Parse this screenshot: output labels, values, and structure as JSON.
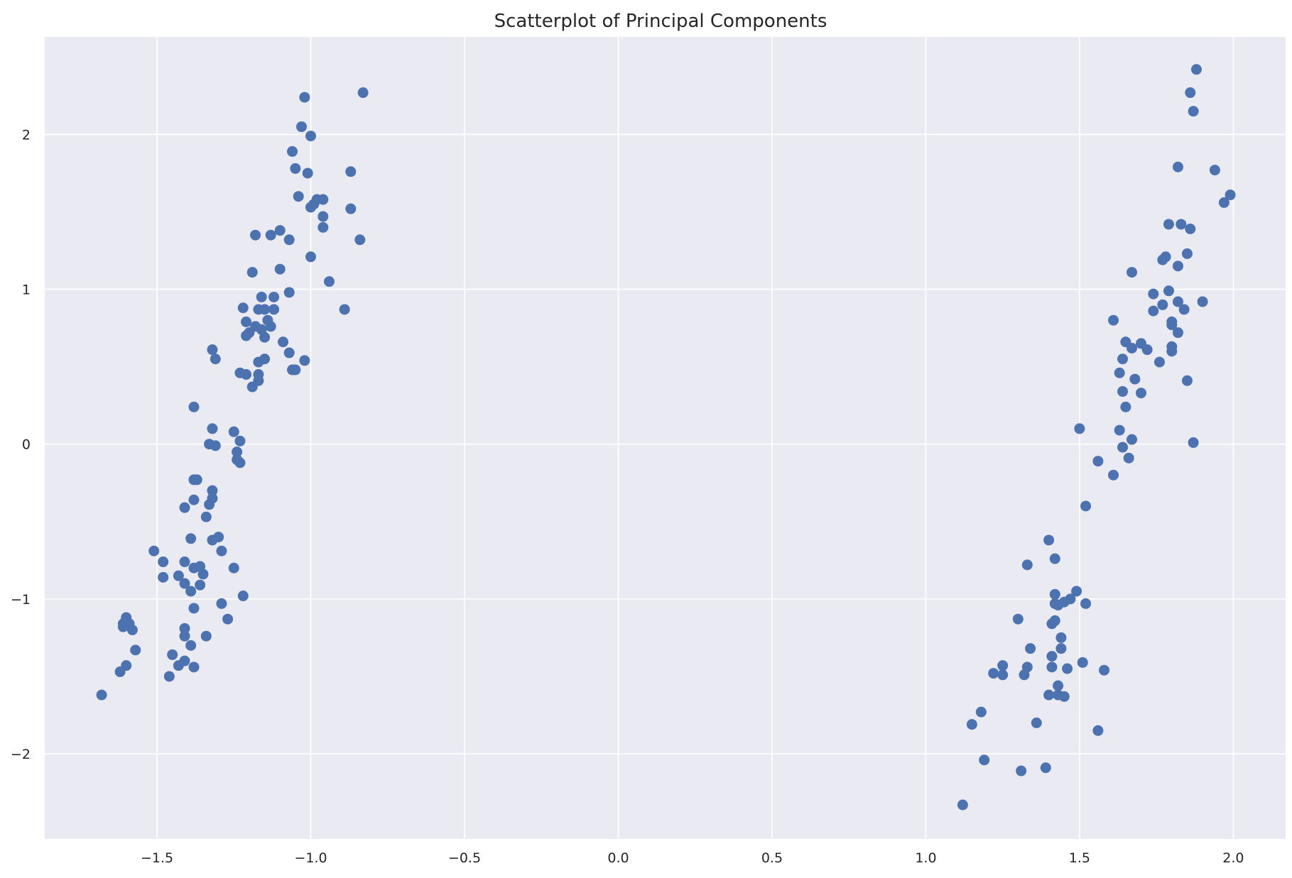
{
  "chart_data": {
    "type": "scatter",
    "title": "Scatterplot of Principal Components",
    "xlabel": "",
    "ylabel": "",
    "xlim": [
      -1.865,
      2.17
    ],
    "ylim": [
      -2.55,
      2.63
    ],
    "xticks": [
      -1.5,
      -1.0,
      -0.5,
      0.0,
      0.5,
      1.0,
      1.5,
      2.0
    ],
    "xtick_labels": [
      "−1.5",
      "−1.0",
      "−0.5",
      "0.0",
      "0.5",
      "1.0",
      "1.5",
      "2.0"
    ],
    "yticks": [
      -2,
      -1,
      0,
      1,
      2
    ],
    "ytick_labels": [
      "−2",
      "−1",
      "0",
      "1",
      "2"
    ],
    "grid": true,
    "colors": {
      "background": "#eaeaf2",
      "grid": "#ffffff",
      "marker": "#4c72b0",
      "text": "#262626"
    },
    "series": [
      {
        "points": [
          [
            -0.83,
            2.27
          ],
          [
            -1.02,
            2.24
          ],
          [
            -1.03,
            2.05
          ],
          [
            -1.0,
            1.99
          ],
          [
            -1.06,
            1.89
          ],
          [
            -1.05,
            1.78
          ],
          [
            -1.01,
            1.75
          ],
          [
            -0.87,
            1.76
          ],
          [
            -1.04,
            1.6
          ],
          [
            -0.98,
            1.58
          ],
          [
            -0.96,
            1.58
          ],
          [
            -0.99,
            1.55
          ],
          [
            -1.0,
            1.53
          ],
          [
            -0.87,
            1.52
          ],
          [
            -0.96,
            1.47
          ],
          [
            -0.96,
            1.4
          ],
          [
            -1.1,
            1.38
          ],
          [
            -1.13,
            1.35
          ],
          [
            -1.18,
            1.35
          ],
          [
            -1.07,
            1.32
          ],
          [
            -0.84,
            1.32
          ],
          [
            -1.0,
            1.21
          ],
          [
            -1.1,
            1.13
          ],
          [
            -1.19,
            1.11
          ],
          [
            -0.94,
            1.05
          ],
          [
            -1.07,
            0.98
          ],
          [
            -1.16,
            0.95
          ],
          [
            -1.12,
            0.95
          ],
          [
            -1.22,
            0.88
          ],
          [
            -1.17,
            0.87
          ],
          [
            -1.15,
            0.87
          ],
          [
            -1.12,
            0.87
          ],
          [
            -0.89,
            0.87
          ],
          [
            -1.14,
            0.8
          ],
          [
            -1.21,
            0.79
          ],
          [
            -1.18,
            0.76
          ],
          [
            -1.13,
            0.76
          ],
          [
            -1.16,
            0.74
          ],
          [
            -1.2,
            0.72
          ],
          [
            -1.21,
            0.7
          ],
          [
            -1.15,
            0.69
          ],
          [
            -1.09,
            0.66
          ],
          [
            -1.32,
            0.61
          ],
          [
            -1.07,
            0.59
          ],
          [
            -1.31,
            0.55
          ],
          [
            -1.15,
            0.55
          ],
          [
            -1.17,
            0.53
          ],
          [
            -1.02,
            0.54
          ],
          [
            -1.06,
            0.48
          ],
          [
            -1.05,
            0.48
          ],
          [
            -1.23,
            0.46
          ],
          [
            -1.21,
            0.45
          ],
          [
            -1.17,
            0.45
          ],
          [
            -1.17,
            0.41
          ],
          [
            -1.19,
            0.37
          ],
          [
            -1.38,
            0.24
          ],
          [
            -1.32,
            0.1
          ],
          [
            -1.25,
            0.08
          ],
          [
            -1.23,
            0.02
          ],
          [
            -1.33,
            0.0
          ],
          [
            -1.31,
            -0.01
          ],
          [
            -1.24,
            -0.05
          ],
          [
            -1.24,
            -0.1
          ],
          [
            -1.23,
            -0.12
          ],
          [
            -1.38,
            -0.23
          ],
          [
            -1.37,
            -0.23
          ],
          [
            -1.32,
            -0.3
          ],
          [
            -1.32,
            -0.35
          ],
          [
            -1.38,
            -0.36
          ],
          [
            -1.33,
            -0.39
          ],
          [
            -1.41,
            -0.41
          ],
          [
            -1.34,
            -0.47
          ],
          [
            -1.3,
            -0.6
          ],
          [
            -1.39,
            -0.61
          ],
          [
            -1.32,
            -0.62
          ],
          [
            -1.51,
            -0.69
          ],
          [
            -1.29,
            -0.69
          ],
          [
            -1.48,
            -0.76
          ],
          [
            -1.41,
            -0.76
          ],
          [
            -1.36,
            -0.79
          ],
          [
            -1.38,
            -0.8
          ],
          [
            -1.25,
            -0.8
          ],
          [
            -1.35,
            -0.84
          ],
          [
            -1.43,
            -0.85
          ],
          [
            -1.48,
            -0.86
          ],
          [
            -1.41,
            -0.9
          ],
          [
            -1.36,
            -0.91
          ],
          [
            -1.39,
            -0.95
          ],
          [
            -1.22,
            -0.98
          ],
          [
            -1.29,
            -1.03
          ],
          [
            -1.38,
            -1.06
          ],
          [
            -1.6,
            -1.12
          ],
          [
            -1.27,
            -1.13
          ],
          [
            -1.61,
            -1.16
          ],
          [
            -1.59,
            -1.16
          ],
          [
            -1.61,
            -1.18
          ],
          [
            -1.41,
            -1.19
          ],
          [
            -1.58,
            -1.2
          ],
          [
            -1.41,
            -1.24
          ],
          [
            -1.34,
            -1.24
          ],
          [
            -1.39,
            -1.3
          ],
          [
            -1.57,
            -1.33
          ],
          [
            -1.45,
            -1.36
          ],
          [
            -1.41,
            -1.4
          ],
          [
            -1.43,
            -1.43
          ],
          [
            -1.6,
            -1.43
          ],
          [
            -1.38,
            -1.44
          ],
          [
            -1.62,
            -1.47
          ],
          [
            -1.46,
            -1.5
          ],
          [
            -1.68,
            -1.62
          ],
          [
            1.88,
            2.42
          ],
          [
            1.86,
            2.27
          ],
          [
            1.87,
            2.15
          ],
          [
            1.82,
            1.79
          ],
          [
            1.94,
            1.77
          ],
          [
            1.99,
            1.61
          ],
          [
            1.97,
            1.56
          ],
          [
            1.79,
            1.42
          ],
          [
            1.83,
            1.42
          ],
          [
            1.86,
            1.39
          ],
          [
            1.85,
            1.23
          ],
          [
            1.78,
            1.21
          ],
          [
            1.77,
            1.19
          ],
          [
            1.82,
            1.15
          ],
          [
            1.67,
            1.11
          ],
          [
            1.79,
            0.99
          ],
          [
            1.74,
            0.97
          ],
          [
            1.9,
            0.92
          ],
          [
            1.82,
            0.92
          ],
          [
            1.77,
            0.9
          ],
          [
            1.84,
            0.87
          ],
          [
            1.74,
            0.86
          ],
          [
            1.61,
            0.8
          ],
          [
            1.8,
            0.79
          ],
          [
            1.8,
            0.77
          ],
          [
            1.82,
            0.72
          ],
          [
            1.65,
            0.66
          ],
          [
            1.7,
            0.65
          ],
          [
            1.67,
            0.62
          ],
          [
            1.8,
            0.63
          ],
          [
            1.8,
            0.6
          ],
          [
            1.72,
            0.61
          ],
          [
            1.64,
            0.55
          ],
          [
            1.76,
            0.53
          ],
          [
            1.63,
            0.46
          ],
          [
            1.68,
            0.42
          ],
          [
            1.85,
            0.41
          ],
          [
            1.64,
            0.34
          ],
          [
            1.7,
            0.33
          ],
          [
            1.65,
            0.24
          ],
          [
            1.5,
            0.1
          ],
          [
            1.63,
            0.09
          ],
          [
            1.67,
            0.03
          ],
          [
            1.87,
            0.01
          ],
          [
            1.64,
            -0.02
          ],
          [
            1.66,
            -0.09
          ],
          [
            1.56,
            -0.11
          ],
          [
            1.61,
            -0.2
          ],
          [
            1.52,
            -0.4
          ],
          [
            1.4,
            -0.62
          ],
          [
            1.42,
            -0.74
          ],
          [
            1.33,
            -0.78
          ],
          [
            1.49,
            -0.95
          ],
          [
            1.42,
            -0.97
          ],
          [
            1.47,
            -1.0
          ],
          [
            1.45,
            -1.02
          ],
          [
            1.42,
            -1.03
          ],
          [
            1.43,
            -1.04
          ],
          [
            1.52,
            -1.03
          ],
          [
            1.3,
            -1.13
          ],
          [
            1.42,
            -1.14
          ],
          [
            1.41,
            -1.16
          ],
          [
            1.44,
            -1.25
          ],
          [
            1.34,
            -1.32
          ],
          [
            1.44,
            -1.32
          ],
          [
            1.41,
            -1.37
          ],
          [
            1.51,
            -1.41
          ],
          [
            1.25,
            -1.43
          ],
          [
            1.33,
            -1.44
          ],
          [
            1.41,
            -1.44
          ],
          [
            1.46,
            -1.45
          ],
          [
            1.58,
            -1.46
          ],
          [
            1.22,
            -1.48
          ],
          [
            1.25,
            -1.49
          ],
          [
            1.32,
            -1.49
          ],
          [
            1.43,
            -1.56
          ],
          [
            1.4,
            -1.62
          ],
          [
            1.43,
            -1.62
          ],
          [
            1.45,
            -1.63
          ],
          [
            1.18,
            -1.73
          ],
          [
            1.36,
            -1.8
          ],
          [
            1.15,
            -1.81
          ],
          [
            1.56,
            -1.85
          ],
          [
            1.19,
            -2.04
          ],
          [
            1.39,
            -2.09
          ],
          [
            1.31,
            -2.11
          ],
          [
            1.12,
            -2.33
          ]
        ]
      }
    ]
  }
}
